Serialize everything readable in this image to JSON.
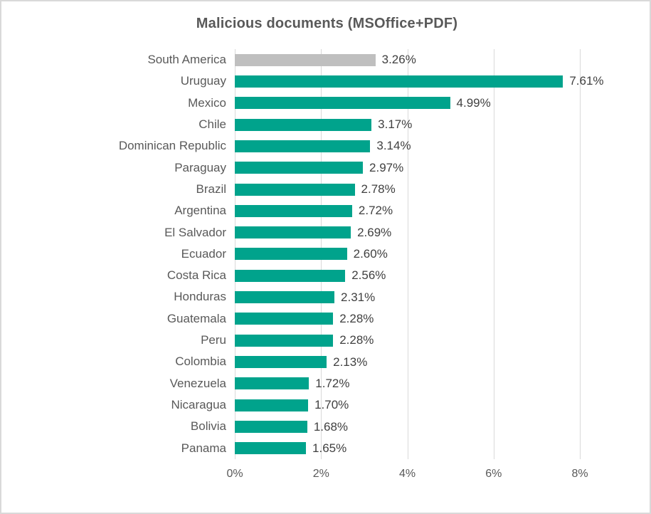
{
  "frame": {
    "background": "#ffffff",
    "border_color": "#d9d9d9"
  },
  "chart_data": {
    "type": "bar",
    "orientation": "horizontal",
    "title": "Malicious documents (MSOffice+PDF)",
    "categories": [
      "South America",
      "Uruguay",
      "Mexico",
      "Chile",
      "Dominican Republic",
      "Paraguay",
      "Brazil",
      "Argentina",
      "El Salvador",
      "Ecuador",
      "Costa Rica",
      "Honduras",
      "Guatemala",
      "Peru",
      "Colombia",
      "Venezuela",
      "Nicaragua",
      "Bolivia",
      "Panama"
    ],
    "values": [
      3.26,
      7.61,
      4.99,
      3.17,
      3.14,
      2.97,
      2.78,
      2.72,
      2.69,
      2.6,
      2.56,
      2.31,
      2.28,
      2.28,
      2.13,
      1.72,
      1.7,
      1.68,
      1.65
    ],
    "value_labels": [
      "3.26%",
      "7.61%",
      "4.99%",
      "3.17%",
      "3.14%",
      "2.97%",
      "2.78%",
      "2.72%",
      "2.69%",
      "2.60%",
      "2.56%",
      "2.31%",
      "2.28%",
      "2.28%",
      "2.13%",
      "1.72%",
      "1.70%",
      "1.68%",
      "1.65%"
    ],
    "summary_category": "South America",
    "xlim": [
      0,
      8
    ],
    "x_ticks": [
      "0%",
      "2%",
      "4%",
      "6%",
      "8%"
    ],
    "x_tick_values": [
      0,
      2,
      4,
      6,
      8
    ],
    "grid": true,
    "legend": "none",
    "colors": {
      "default_bar": "#00A38C",
      "summary_bar": "#BFBFBF",
      "title": "#595959",
      "category_label": "#595959",
      "value_label": "#404040",
      "axis_label": "#595959",
      "gridline": "#D9D9D9"
    }
  }
}
